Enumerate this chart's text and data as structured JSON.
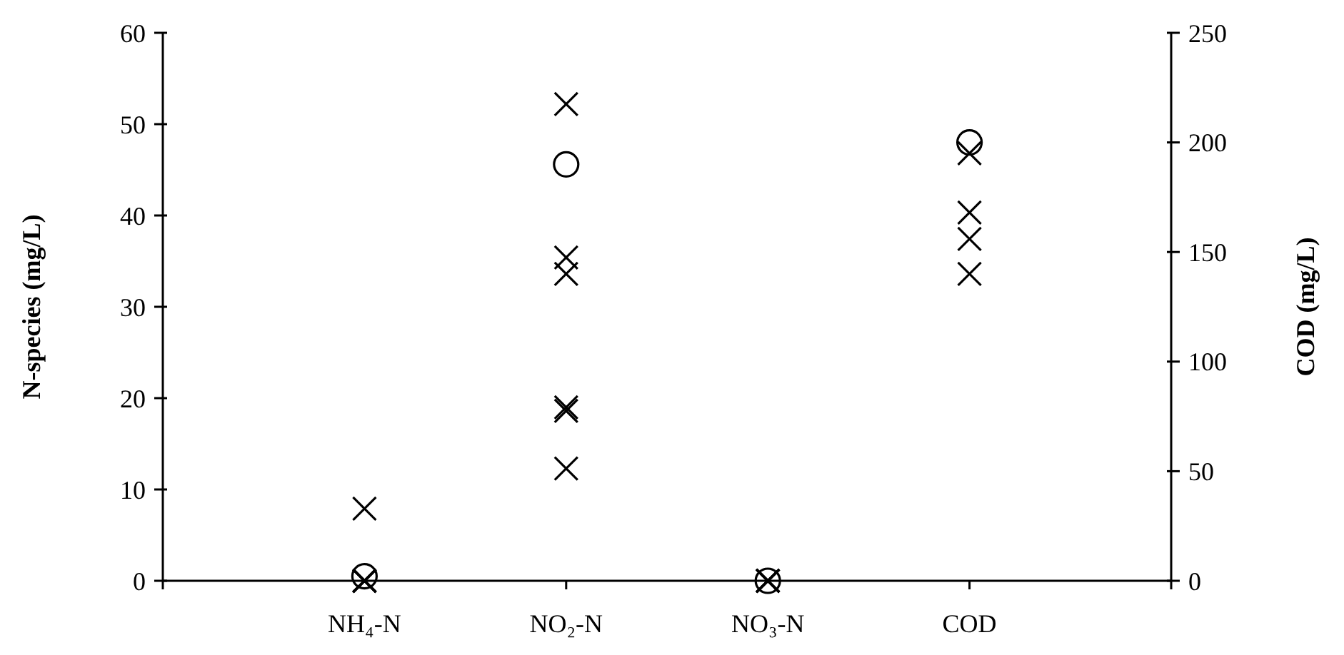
{
  "chart_data": {
    "type": "scatter",
    "categories": [
      "NH₄-N",
      "NO₂-N",
      "NO₃-N",
      "COD"
    ],
    "ylabel": "N-species (mg/L)",
    "y2label": "COD (mg/L)",
    "ylim": [
      0,
      60
    ],
    "yticks": [
      0,
      10,
      20,
      30,
      40,
      50,
      60
    ],
    "y2lim": [
      0,
      250
    ],
    "y2ticks": [
      0,
      50,
      100,
      150,
      200,
      250
    ],
    "grid": false,
    "series": [
      {
        "color": "#000000",
        "marker": "cross",
        "x": [
          "NH₄-N",
          "NH₄-N",
          "NH₄-N",
          "NH₄-N",
          "NH₄-N",
          "NH₄-N",
          "NO₂-N",
          "NO₂-N",
          "NO₂-N",
          "NO₂-N",
          "NO₂-N",
          "NO₂-N",
          "NO₃-N",
          "NO₃-N",
          "NO₃-N",
          "NO₃-N",
          "NO₃-N",
          "NO₃-N"
        ],
        "values": [
          7.9,
          0,
          0,
          0,
          0,
          0,
          52.2,
          35.4,
          33.6,
          19,
          18.6,
          12.3,
          0,
          0,
          0,
          0,
          0,
          0
        ]
      },
      {
        "color": "#000000",
        "marker": "cross",
        "axis": "y2",
        "x": [
          "COD",
          "COD",
          "COD",
          "COD"
        ],
        "values": [
          195,
          168,
          156,
          140
        ]
      },
      {
        "color": "#000000",
        "marker": "circle",
        "x": [
          "NH₄-N",
          "NO₂-N",
          "NO₃-N"
        ],
        "values": [
          0.5,
          45.6,
          0
        ]
      },
      {
        "color": "#000000",
        "marker": "circle",
        "axis": "y2",
        "x": [
          "COD"
        ],
        "values": [
          200
        ]
      }
    ]
  }
}
